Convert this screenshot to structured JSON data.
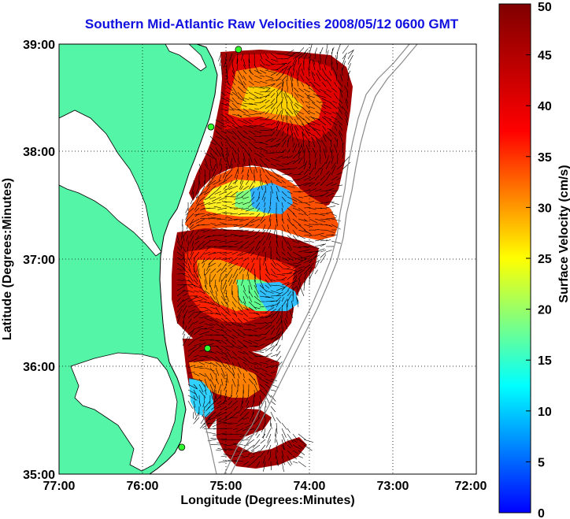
{
  "figure": {
    "title": "Southern Mid-Atlantic Raw Velocities 2008/05/12 0600 GMT",
    "xlabel": "Longitude (Degrees:Minutes)",
    "ylabel": "Latitude (Degrees:Minutes)",
    "colorbar_label": "Surface Velocity (cm/s)"
  },
  "axes": {
    "x_ticks": [
      "77:00",
      "76:00",
      "75:00",
      "74:00",
      "73:00",
      "72:00"
    ],
    "y_ticks": [
      "39:00",
      "38:00",
      "37:00",
      "36:00",
      "35:00"
    ],
    "colorbar_ticks": [
      "50",
      "45",
      "40",
      "35",
      "30",
      "25",
      "20",
      "15",
      "10",
      "5",
      "0"
    ]
  },
  "map_data": {
    "lon_range": [
      -77,
      -72
    ],
    "lat_range": [
      35,
      39
    ],
    "color_scale": [
      0,
      50
    ],
    "grid": "dotted",
    "land_color": "#55f5a8",
    "stations": [
      {
        "lon": -74.85,
        "lat": 38.95
      },
      {
        "lon": -75.18,
        "lat": 38.23
      },
      {
        "lon": -75.22,
        "lat": 36.17
      },
      {
        "lon": -75.53,
        "lat": 35.25
      }
    ]
  }
}
